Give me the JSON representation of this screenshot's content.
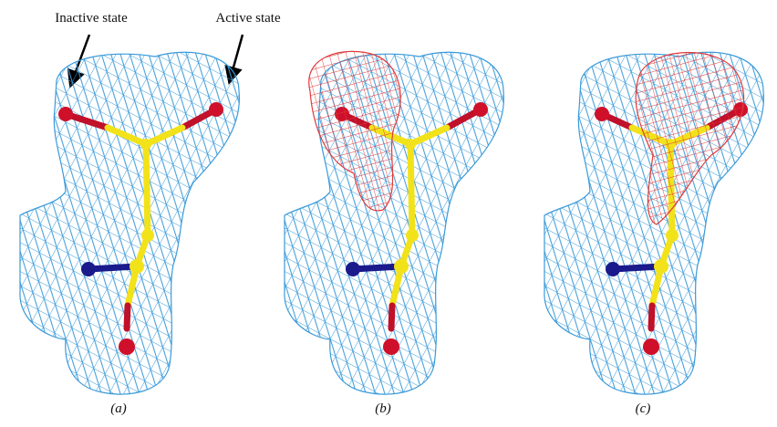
{
  "annotations": [
    "Inactive state",
    "Active state"
  ],
  "panels": [
    {
      "label": "(a)"
    },
    {
      "label": "(b)"
    },
    {
      "label": "(c)"
    }
  ]
}
